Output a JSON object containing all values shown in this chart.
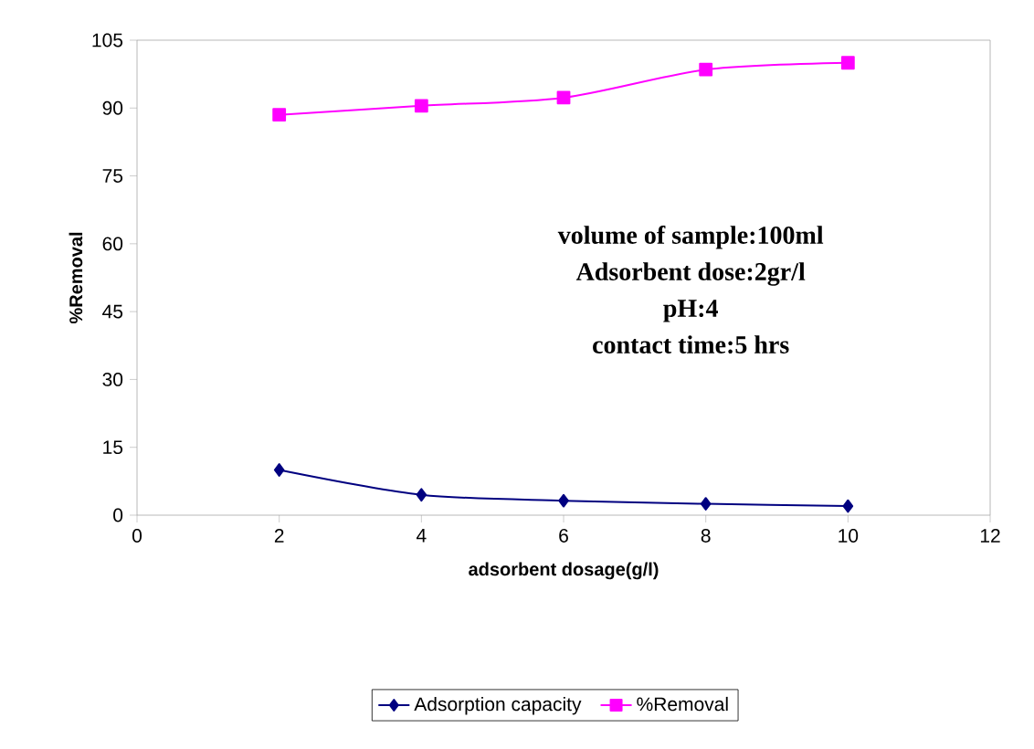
{
  "chart_data": {
    "type": "line",
    "xlabel": "adsorbent dosage(g/l)",
    "ylabel": "%Removal",
    "x": [
      2,
      4,
      6,
      8,
      10
    ],
    "series": [
      {
        "name": "Adsorption capacity",
        "color": "#000080",
        "marker": "diamond",
        "values": [
          10,
          4.5,
          3.2,
          2.5,
          2
        ]
      },
      {
        "name": "%Removal",
        "color": "#ff00ff",
        "marker": "square",
        "values": [
          88.5,
          90.5,
          92.3,
          98.5,
          100
        ]
      }
    ],
    "xlim": [
      0,
      12
    ],
    "xticks": [
      0,
      2,
      4,
      6,
      8,
      10,
      12
    ],
    "ylim": [
      0,
      105
    ],
    "yticks": [
      0,
      15,
      30,
      45,
      60,
      75,
      90,
      105
    ],
    "grid": false,
    "legend": "bottom",
    "line_style": "solid",
    "annotations": [
      "volume of sample:100ml",
      "Adsorbent dose:2gr/l",
      "pH:4",
      "contact time:5 hrs"
    ]
  }
}
